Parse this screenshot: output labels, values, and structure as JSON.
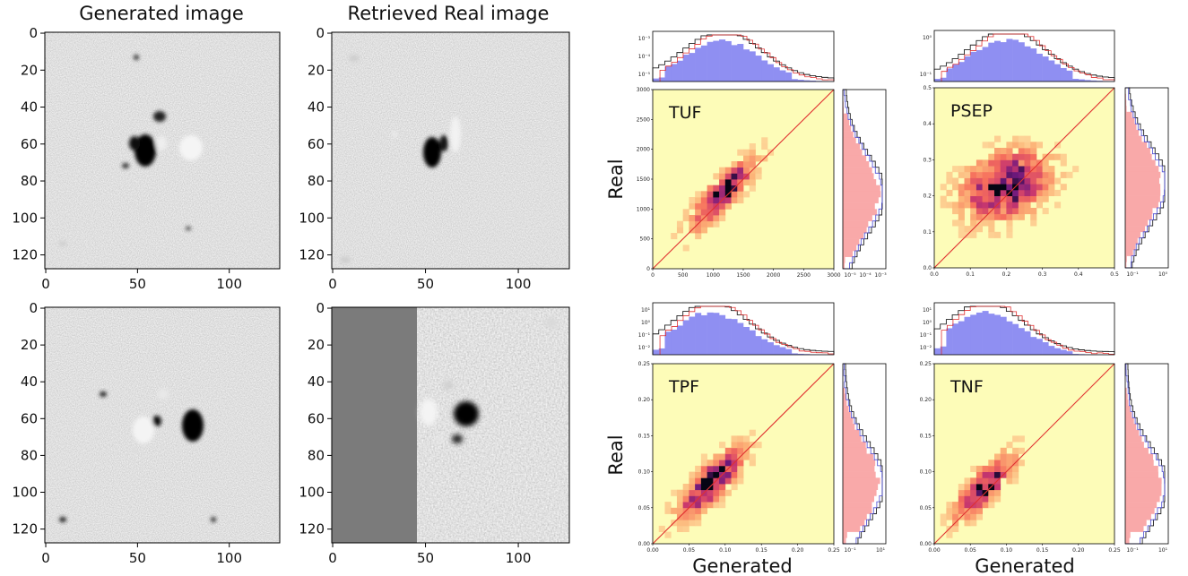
{
  "left": {
    "col_titles": [
      "Generated image",
      "Retrieved Real image"
    ],
    "y_ticks": [
      "0",
      "20",
      "40",
      "60",
      "80",
      "100",
      "120"
    ],
    "x_ticks": [
      "0",
      "50",
      "100"
    ]
  },
  "right": {
    "ylabel": "Real",
    "xlabel": "Generated"
  },
  "colors": {
    "scatter_bg": "#fdfcb8",
    "hist_blue": "#8f8ff2",
    "hist_red_fill": "#f9a9a9",
    "red_line": "#e03030",
    "blue_line": "#4b4bd4"
  },
  "chart_data": [
    {
      "type": "heatmap",
      "label": "TUF",
      "xlim": [
        0,
        3000
      ],
      "ylim": [
        0,
        3000
      ],
      "x_ticks": [
        "0",
        "500",
        "1000",
        "1500",
        "2000",
        "2500",
        "3000"
      ],
      "y_ticks": [
        "0",
        "500",
        "1000",
        "1500",
        "2000",
        "2500",
        "3000"
      ],
      "top_hist_ticks": [
        "10⁻³",
        "10⁻⁴",
        "10⁻⁵"
      ],
      "side_hist_ticks": [
        "10⁻⁵",
        "10⁻⁴",
        "10⁻³"
      ],
      "center": [
        1150,
        1250
      ],
      "spread": [
        330,
        360
      ],
      "corr": 0.85,
      "diagonal": true
    },
    {
      "type": "heatmap",
      "label": "PSEP",
      "xlim": [
        0.0,
        0.5
      ],
      "ylim": [
        0.0,
        0.5
      ],
      "x_ticks": [
        "0.0",
        "0.1",
        "0.2",
        "0.3",
        "0.4",
        "0.5"
      ],
      "y_ticks": [
        "0.0",
        "0.1",
        "0.2",
        "0.3",
        "0.4",
        "0.5"
      ],
      "top_hist_ticks": [
        "10⁰",
        "10⁻¹"
      ],
      "side_hist_ticks": [
        "10⁻¹",
        "10⁰"
      ],
      "center": [
        0.2,
        0.23
      ],
      "spread": [
        0.075,
        0.06
      ],
      "corr": 0.3,
      "diagonal": true
    },
    {
      "type": "heatmap",
      "label": "TPF",
      "xlim": [
        0.0,
        0.25
      ],
      "ylim": [
        0.0,
        0.25
      ],
      "x_ticks": [
        "0.00",
        "0.05",
        "0.10",
        "0.15",
        "0.20",
        "0.25"
      ],
      "y_ticks": [
        "0.00",
        "0.05",
        "0.10",
        "0.15",
        "0.20",
        "0.25"
      ],
      "top_hist_ticks": [
        "10¹",
        "10⁰",
        "10⁻¹",
        "10⁻²"
      ],
      "side_hist_ticks": [
        "10⁻¹",
        "10¹"
      ],
      "center": [
        0.08,
        0.085
      ],
      "spread": [
        0.028,
        0.03
      ],
      "corr": 0.8,
      "diagonal": true
    },
    {
      "type": "heatmap",
      "label": "TNF",
      "xlim": [
        0.0,
        0.25
      ],
      "ylim": [
        0.0,
        0.25
      ],
      "x_ticks": [
        "0.00",
        "0.05",
        "0.10",
        "0.15",
        "0.20",
        "0.25"
      ],
      "y_ticks": [
        "0.00",
        "0.05",
        "0.10",
        "0.15",
        "0.20",
        "0.25"
      ],
      "top_hist_ticks": [
        "10¹",
        "10⁰",
        "10⁻¹",
        "10⁻²"
      ],
      "side_hist_ticks": [
        "10⁻¹",
        "10¹"
      ],
      "center": [
        0.07,
        0.08
      ],
      "spread": [
        0.025,
        0.028
      ],
      "corr": 0.8,
      "diagonal": true
    }
  ]
}
